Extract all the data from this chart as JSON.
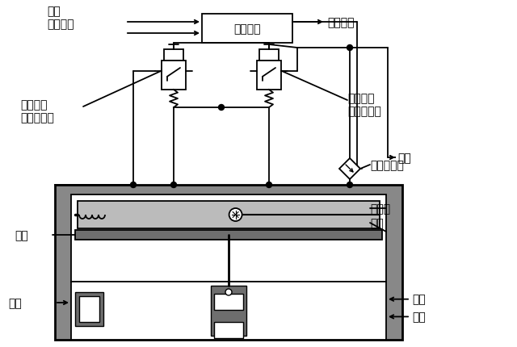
{
  "bg_color": "#ffffff",
  "line_color": "#000000",
  "gray_dark": "#6e6e6e",
  "gray_mid": "#999999",
  "gray_light": "#bbbbbb",
  "gray_body": "#888888",
  "labels": {
    "power_input": "电源\n输入信号",
    "control_circuit": "控制电路",
    "output_signal": "输出信号",
    "inlet_solenoid": "进气高速\n开关电磁阀",
    "exhaust_solenoid": "排气高速\n开关电磁阀",
    "exhaust_top": "排气",
    "pressure_sensor": "压力传感器",
    "baffle": "挡板",
    "pilot_chamber": "先导腔",
    "main_valve": "主阀",
    "inlet": "进口",
    "outlet": "出口",
    "exhaust_bot": "排气"
  },
  "font_size": 10
}
